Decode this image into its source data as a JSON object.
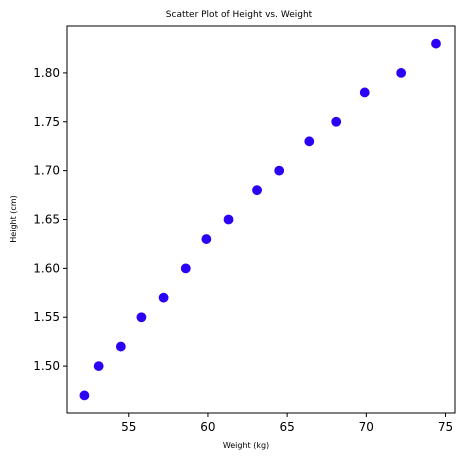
{
  "chart_data": {
    "type": "scatter",
    "title": "Scatter Plot of Height vs. Weight",
    "xlabel": "Weight (kg)",
    "ylabel": "Height (cm)",
    "xlim": [
      51.1,
      75.6
    ],
    "ylim": [
      1.452,
      1.848
    ],
    "x_ticks": [
      55,
      60,
      65,
      70,
      75
    ],
    "y_ticks": [
      1.5,
      1.55,
      1.6,
      1.65,
      1.7,
      1.75,
      1.8
    ],
    "y_tick_labels": [
      "1.50",
      "1.55",
      "1.60",
      "1.65",
      "1.70",
      "1.75",
      "1.80"
    ],
    "x_tick_labels": [
      "55",
      "60",
      "65",
      "70",
      "75"
    ],
    "grid": false,
    "series": [
      {
        "color": "#2b00f5",
        "points": [
          {
            "x": 52.2,
            "y": 1.47
          },
          {
            "x": 53.1,
            "y": 1.5
          },
          {
            "x": 54.5,
            "y": 1.52
          },
          {
            "x": 55.8,
            "y": 1.55
          },
          {
            "x": 57.2,
            "y": 1.57
          },
          {
            "x": 58.6,
            "y": 1.6
          },
          {
            "x": 59.9,
            "y": 1.63
          },
          {
            "x": 61.3,
            "y": 1.65
          },
          {
            "x": 63.1,
            "y": 1.68
          },
          {
            "x": 64.5,
            "y": 1.7
          },
          {
            "x": 66.4,
            "y": 1.73
          },
          {
            "x": 68.1,
            "y": 1.75
          },
          {
            "x": 69.9,
            "y": 1.78
          },
          {
            "x": 72.2,
            "y": 1.8
          },
          {
            "x": 74.4,
            "y": 1.83
          }
        ]
      }
    ]
  }
}
